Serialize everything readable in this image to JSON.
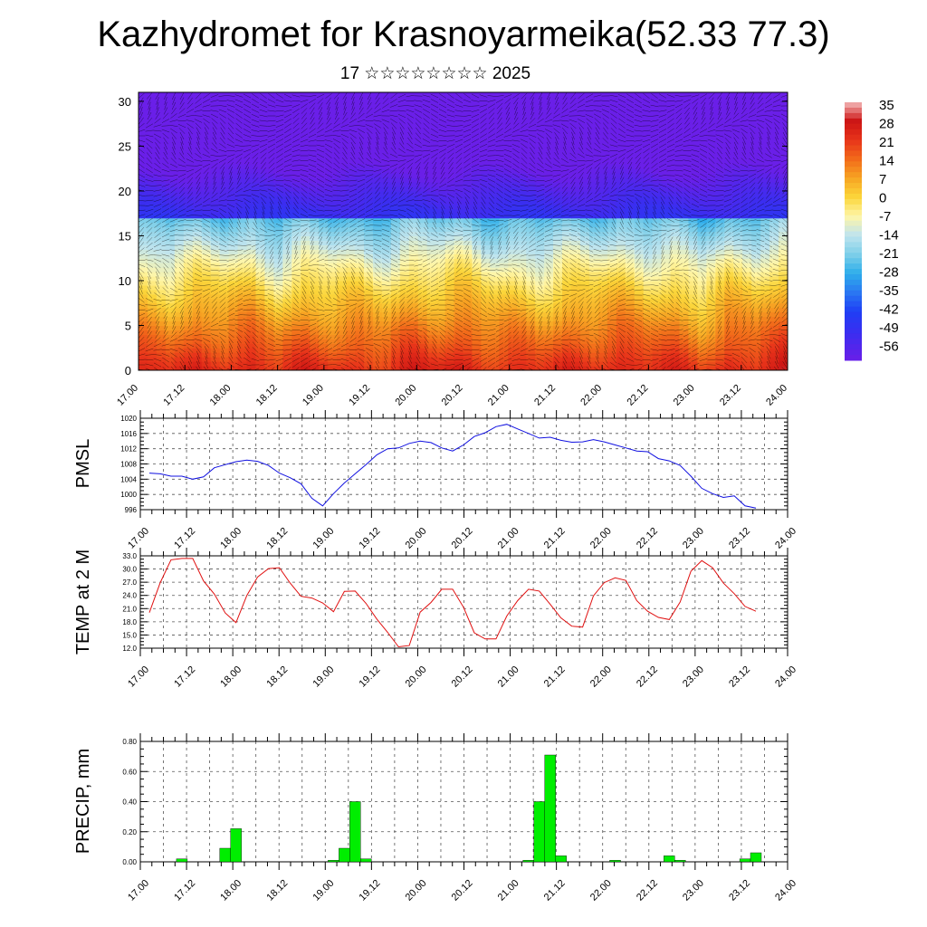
{
  "title": "Kazhydromet for Krasnoyarmeika(52.33 77.3)",
  "subtitle": "17 ☆☆☆☆☆☆☆☆ 2025",
  "time_labels": [
    "17.00",
    "17.12",
    "18.00",
    "18.12",
    "19.00",
    "19.12",
    "20.00",
    "20.12",
    "21.00",
    "21.12",
    "22.00",
    "22.12",
    "23.00",
    "23.12",
    "24.00"
  ],
  "chart_data": [
    {
      "type": "heatmap",
      "xlabel": "",
      "ylabel": "",
      "ylim": [
        0,
        31
      ],
      "yticks": [
        0,
        5,
        10,
        15,
        20,
        25,
        30
      ],
      "colorbar": {
        "labels": [
          "35",
          "28",
          "21",
          "14",
          "7",
          "0",
          "-7",
          "-14",
          "-21",
          "-28",
          "-35",
          "-42",
          "-49",
          "-56"
        ],
        "stops": [
          {
            "value": -60,
            "color": "#6a1fe8"
          },
          {
            "value": -50,
            "color": "#3a2ef0"
          },
          {
            "value": -42,
            "color": "#1f3ff5"
          },
          {
            "value": -35,
            "color": "#2a78f2"
          },
          {
            "value": -28,
            "color": "#2eaeea"
          },
          {
            "value": -21,
            "color": "#7fcfe9"
          },
          {
            "value": -14,
            "color": "#bfe4ee"
          },
          {
            "value": -7,
            "color": "#fff6a8"
          },
          {
            "value": 0,
            "color": "#fbd63a"
          },
          {
            "value": 7,
            "color": "#f7a523"
          },
          {
            "value": 14,
            "color": "#f26b1a"
          },
          {
            "value": 21,
            "color": "#e8341a"
          },
          {
            "value": 28,
            "color": "#cc1414"
          },
          {
            "value": 35,
            "color": "#f4b8b8"
          }
        ]
      },
      "surface_temp": [
        24,
        20,
        26,
        22,
        27,
        18,
        26,
        21,
        25,
        19,
        27,
        22,
        28,
        20,
        24,
        19,
        26,
        22,
        27,
        21,
        25,
        18,
        26,
        22,
        28
      ]
    },
    {
      "type": "line",
      "ylabel": "PMSL",
      "ylim": [
        996,
        1020
      ],
      "yticks": [
        996,
        1000,
        1004,
        1008,
        1012,
        1016,
        1020
      ],
      "color": "#1010e0",
      "values": [
        1005.6,
        1005.4,
        1004.8,
        1004.8,
        1004.0,
        1004.6,
        1007.0,
        1007.8,
        1008.6,
        1009.0,
        1008.7,
        1007.6,
        1005.6,
        1004.4,
        1002.8,
        999.0,
        997.0,
        1000.2,
        1003.0,
        1005.4,
        1007.8,
        1010.4,
        1012.0,
        1012.2,
        1013.4,
        1014.0,
        1013.6,
        1012.2,
        1011.4,
        1013.0,
        1015.2,
        1016.2,
        1017.8,
        1018.4,
        1017.2,
        1016.0,
        1014.8,
        1015.0,
        1014.2,
        1013.7,
        1013.8,
        1014.4,
        1013.8,
        1013.0,
        1012.2,
        1011.4,
        1011.2,
        1009.4,
        1008.8,
        1007.6,
        1004.8,
        1001.6,
        1000.2,
        999.2,
        999.6,
        997.0,
        996.4
      ]
    },
    {
      "type": "line",
      "ylabel": "TEMP at 2 M",
      "ylim": [
        12,
        33
      ],
      "yticks": [
        "12.0",
        "15.0",
        "18.0",
        "21.0",
        "24.0",
        "27.0",
        "30.0",
        "33.0"
      ],
      "color": "#e01010",
      "values": [
        20.1,
        26.9,
        32.1,
        32.4,
        32.4,
        27.3,
        24.3,
        20.0,
        17.8,
        24.0,
        28.2,
        30.1,
        30.3,
        26.8,
        23.8,
        23.4,
        22.3,
        20.3,
        24.9,
        25.0,
        22.2,
        18.6,
        15.6,
        12.3,
        12.6,
        20.2,
        22.4,
        25.4,
        25.4,
        21.3,
        15.5,
        14.1,
        14.1,
        19.3,
        22.8,
        25.4,
        25.0,
        22.0,
        18.9,
        17.0,
        16.8,
        23.9,
        26.9,
        28.0,
        27.4,
        22.8,
        20.4,
        19.0,
        18.5,
        22.5,
        29.5,
        31.9,
        30.3,
        26.8,
        24.4,
        21.5,
        20.4
      ]
    },
    {
      "type": "bar",
      "ylabel": "PRECIP, mm",
      "ylim": [
        0,
        0.8
      ],
      "yticks": [
        "0.00",
        "0.20",
        "0.40",
        "0.60",
        "0.80"
      ],
      "color": "#00ee00",
      "values": [
        0,
        0,
        0,
        0.02,
        0,
        0,
        0,
        0.09,
        0.22,
        0,
        0,
        0,
        0,
        0,
        0,
        0,
        0,
        0.01,
        0.09,
        0.4,
        0.02,
        0,
        0,
        0,
        0,
        0,
        0,
        0,
        0,
        0,
        0,
        0,
        0,
        0,
        0,
        0.01,
        0.4,
        0.71,
        0.04,
        0,
        0,
        0,
        0,
        0.01,
        0,
        0,
        0,
        0,
        0.04,
        0.01,
        0,
        0,
        0,
        0,
        0,
        0.02,
        0.06
      ]
    }
  ]
}
